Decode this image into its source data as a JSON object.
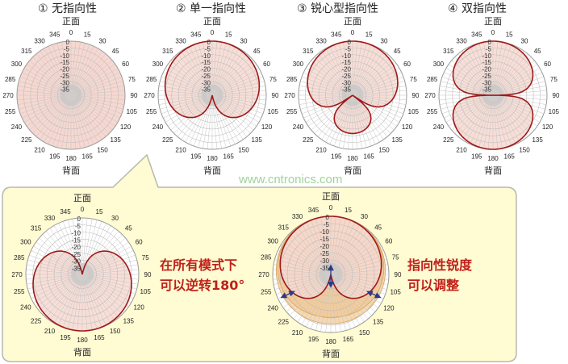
{
  "titles": [
    "① 无指向性",
    "② 单一指向性",
    "③ 锐心型指向性",
    "④ 双指向性"
  ],
  "front_label": "正面",
  "back_label": "背面",
  "watermark": "www.cntronics.com",
  "angle_labels": [
    "0",
    "15",
    "30",
    "45",
    "60",
    "75",
    "90",
    "105",
    "120",
    "135",
    "150",
    "165",
    "180",
    "195",
    "210",
    "225",
    "240",
    "255",
    "270",
    "285",
    "300",
    "315",
    "330",
    "345"
  ],
  "ring_labels": [
    "0",
    "-5",
    "-10",
    "-15",
    "-20",
    "-25",
    "-30",
    "-35"
  ],
  "notes": {
    "left": [
      "在所有模式下",
      "可以逆转180°"
    ],
    "right": [
      "指向性锐度",
      "可以调整"
    ]
  },
  "colors": {
    "pattern_line": "#a01818",
    "pattern_fill": "#f6d8d0",
    "adjust_fill": "#f2c890",
    "callout_bg": "#fffbd2",
    "arrow": "#2a3a8a"
  },
  "patterns": [
    {
      "name": "omnidirectional",
      "a": 1,
      "b": 0
    },
    {
      "name": "cardioid",
      "a": 0.5,
      "b": 0.5
    },
    {
      "name": "supercardioid",
      "a": 0.37,
      "b": 0.63
    },
    {
      "name": "bidirectional",
      "a": 0,
      "b": 1
    },
    {
      "name": "cardioid-reversed",
      "a": 0.5,
      "b": -0.5
    },
    {
      "name": "cardioid-adjustable",
      "a": 0.5,
      "b": 0.5,
      "range": [
        {
          "a": 0.65,
          "b": 0.35
        },
        {
          "a": 0.75,
          "b": 0.25
        }
      ]
    }
  ]
}
